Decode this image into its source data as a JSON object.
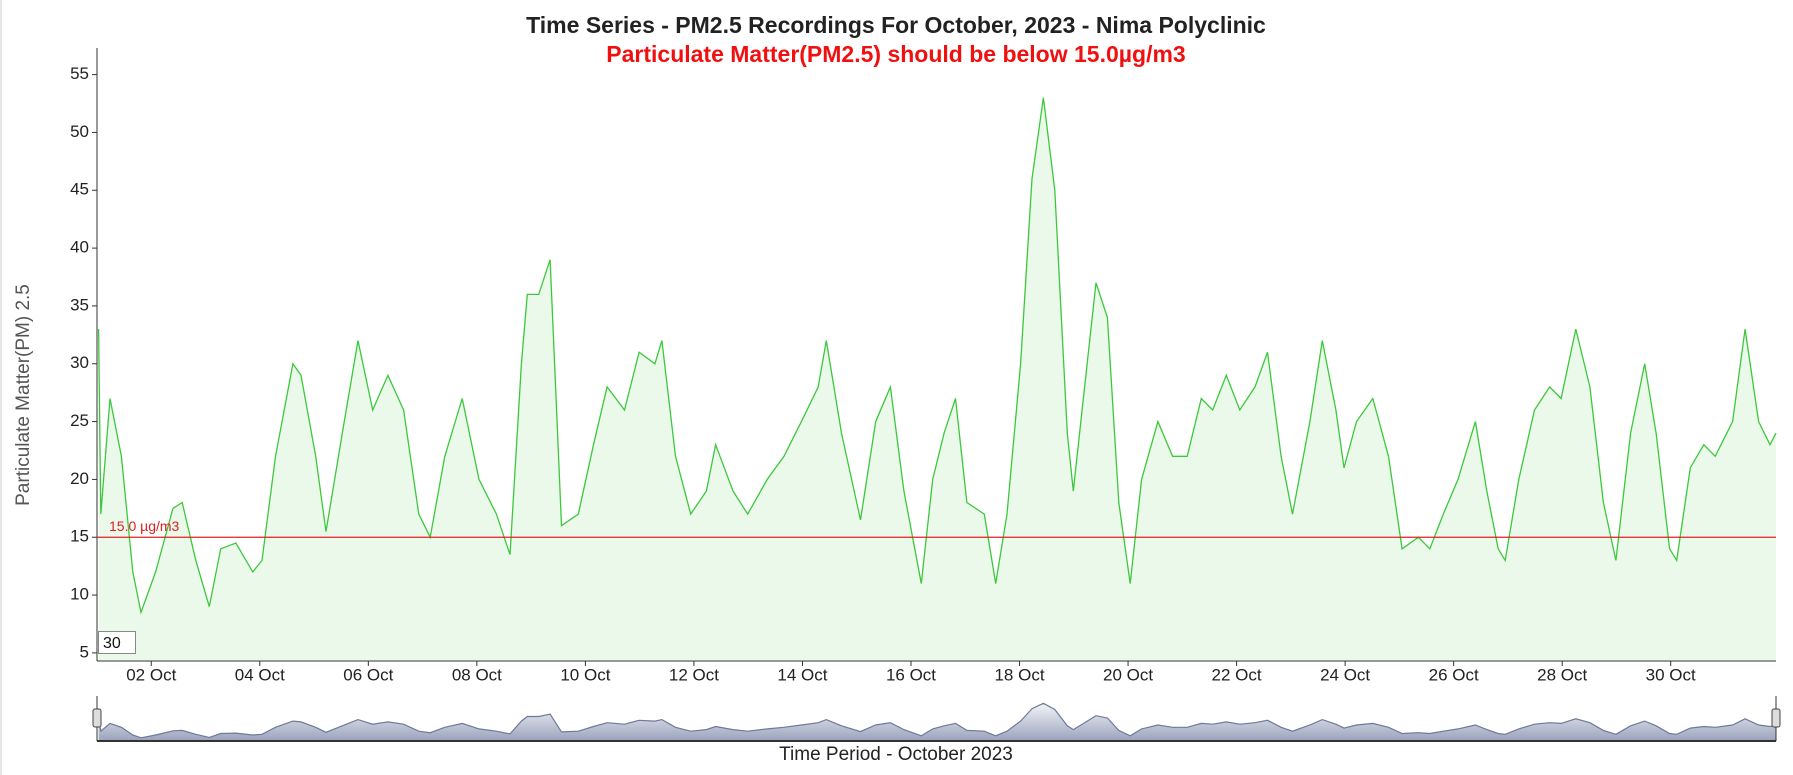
{
  "chart_data": {
    "type": "line",
    "title": "Time Series - PM2.5 Recordings For October, 2023 - Nima Polyclinic",
    "subtitle": "Particulate Matter(PM2.5) should be below 15.0µg/m3",
    "y_label": "Particulate Matter(PM) 2.5",
    "x_label": "Time Period - October 2023",
    "roll_period": 30,
    "color": "#3cc83c",
    "threshold": {
      "value": 15,
      "label": "15.0 µg/m3",
      "color": "#e02020"
    },
    "xlim": [
      1.0,
      31.94
    ],
    "ylim": [
      4.3,
      57.3
    ],
    "yticks": [
      5,
      10,
      15,
      20,
      25,
      30,
      35,
      40,
      45,
      50,
      55
    ],
    "xticks": [
      {
        "value": 2,
        "label": "02 Oct"
      },
      {
        "value": 4,
        "label": "04 Oct"
      },
      {
        "value": 6,
        "label": "06 Oct"
      },
      {
        "value": 8,
        "label": "08 Oct"
      },
      {
        "value": 10,
        "label": "10 Oct"
      },
      {
        "value": 12,
        "label": "12 Oct"
      },
      {
        "value": 14,
        "label": "14 Oct"
      },
      {
        "value": 16,
        "label": "16 Oct"
      },
      {
        "value": 18,
        "label": "18 Oct"
      },
      {
        "value": 20,
        "label": "20 Oct"
      },
      {
        "value": 22,
        "label": "22 Oct"
      },
      {
        "value": 24,
        "label": "24 Oct"
      },
      {
        "value": 26,
        "label": "26 Oct"
      },
      {
        "value": 28,
        "label": "28 Oct"
      },
      {
        "value": 30,
        "label": "30 Oct"
      }
    ],
    "x": [
      1.03,
      1.07,
      1.24,
      1.45,
      1.66,
      1.81,
      2.08,
      2.4,
      2.57,
      2.82,
      3.07,
      3.28,
      3.56,
      3.87,
      4.04,
      4.29,
      4.61,
      4.76,
      5.03,
      5.22,
      5.52,
      5.81,
      6.08,
      6.36,
      6.65,
      6.93,
      7.14,
      7.41,
      7.73,
      8.04,
      8.36,
      8.61,
      8.82,
      8.93,
      9.14,
      9.35,
      9.45,
      9.56,
      9.87,
      10.15,
      10.4,
      10.72,
      10.99,
      11.28,
      11.41,
      11.66,
      11.94,
      12.23,
      12.4,
      12.72,
      12.99,
      13.35,
      13.66,
      13.98,
      14.29,
      14.44,
      14.72,
      15.07,
      15.35,
      15.62,
      15.87,
      16.19,
      16.4,
      16.61,
      16.82,
      17.03,
      17.35,
      17.56,
      17.77,
      18.02,
      18.23,
      18.44,
      18.65,
      18.88,
      18.99,
      19.2,
      19.41,
      19.62,
      19.83,
      20.04,
      20.25,
      20.55,
      20.82,
      21.09,
      21.35,
      21.56,
      21.81,
      22.06,
      22.34,
      22.57,
      22.82,
      23.03,
      23.35,
      23.58,
      23.83,
      23.98,
      24.21,
      24.51,
      24.8,
      25.05,
      25.35,
      25.56,
      25.81,
      26.08,
      26.4,
      26.61,
      26.82,
      26.95,
      27.2,
      27.49,
      27.77,
      27.98,
      28.25,
      28.51,
      28.76,
      28.99,
      29.26,
      29.52,
      29.73,
      29.98,
      30.11,
      30.36,
      30.61,
      30.82,
      31.14,
      31.37,
      31.62,
      31.83,
      31.94
    ],
    "values": [
      33,
      17,
      27,
      22,
      12,
      8.5,
      12,
      17.5,
      18,
      13,
      9,
      14,
      14.5,
      12,
      13,
      22,
      30,
      29,
      22,
      15.5,
      24,
      32,
      26,
      29,
      26,
      17,
      15,
      22,
      27,
      20,
      17,
      13.5,
      30,
      36,
      36,
      39,
      28,
      16,
      17,
      23,
      28,
      26,
      31,
      30,
      32,
      22,
      17,
      19,
      23,
      19,
      17,
      20,
      22,
      25,
      28,
      32,
      24,
      16.5,
      25,
      28,
      19,
      11,
      20,
      24,
      27,
      18,
      17,
      11,
      17,
      30,
      46,
      53,
      45,
      24,
      19,
      28,
      37,
      34,
      18,
      11,
      20,
      25,
      22,
      22,
      27,
      26,
      29,
      26,
      28,
      31,
      22,
      17,
      25,
      32,
      26,
      21,
      25,
      27,
      22,
      14,
      15,
      14,
      17,
      20,
      25,
      19,
      14,
      13,
      20,
      26,
      28,
      27,
      33,
      28,
      18,
      13,
      24,
      30,
      24,
      14,
      13,
      21,
      23,
      22,
      25,
      33,
      25,
      23,
      24
    ]
  }
}
